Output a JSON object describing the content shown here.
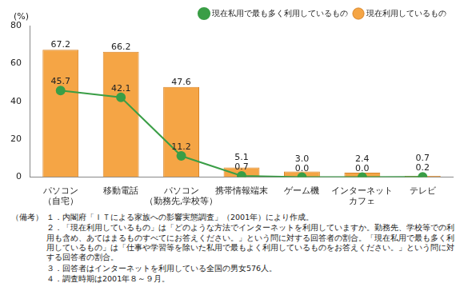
{
  "chart_data": {
    "type": "bar",
    "ylabel": "(%)",
    "categories": [
      "パソコン\n（自宅）",
      "移動電話",
      "パソコン\n（勤務先,学校等）",
      "携帯情報端末",
      "ゲーム機",
      "インターネット\nカフェ",
      "テレビ"
    ],
    "series": [
      {
        "name": "現在利用しているもの",
        "type": "bar",
        "color": "#f5a545",
        "values": [
          67.2,
          66.2,
          47.6,
          5.1,
          3.0,
          2.4,
          0.7
        ],
        "value_labels": [
          "67.2",
          "66.2",
          "47.6",
          "5.1",
          "3.0",
          "2.4",
          "0.7"
        ]
      },
      {
        "name": "現在私用で最も多く利用しているもの",
        "type": "line",
        "color": "#3a9e46",
        "marker": "circle",
        "line_style": "solid",
        "values": [
          45.7,
          42.1,
          11.2,
          0.7,
          0.0,
          0.0,
          0.2
        ],
        "value_labels": [
          "45.7",
          "42.1",
          "11.2",
          "0.7",
          "0.0",
          "0.0",
          "0.2"
        ]
      }
    ],
    "ylim": [
      0,
      80
    ],
    "yticks": [
      0,
      20,
      40,
      60,
      80
    ],
    "grid": false,
    "legend": "top-right",
    "data_labels": true,
    "notes": {
      "heading": "（備考）",
      "items": [
        "１．内閣府「ＩＴによる家族への影響実態調査」（2001年）により作成。",
        "２．「現在利用しているもの」は「どのような方法でインターネットを利用していますか。勤務先、学校等での利用も含め、あてはまるものすべてにお答えください。」という問に対する回答者の割合。「現在私用で最も多く利用しているもの」は「仕事や学習等を除いた私用で最もよく利用しているものをお答えください。」という問に対する回答者の割合。",
        "３．回答者はインターネットを利用している全国の男女576人。",
        "４．調査時期は2001年８～９月。"
      ]
    }
  }
}
